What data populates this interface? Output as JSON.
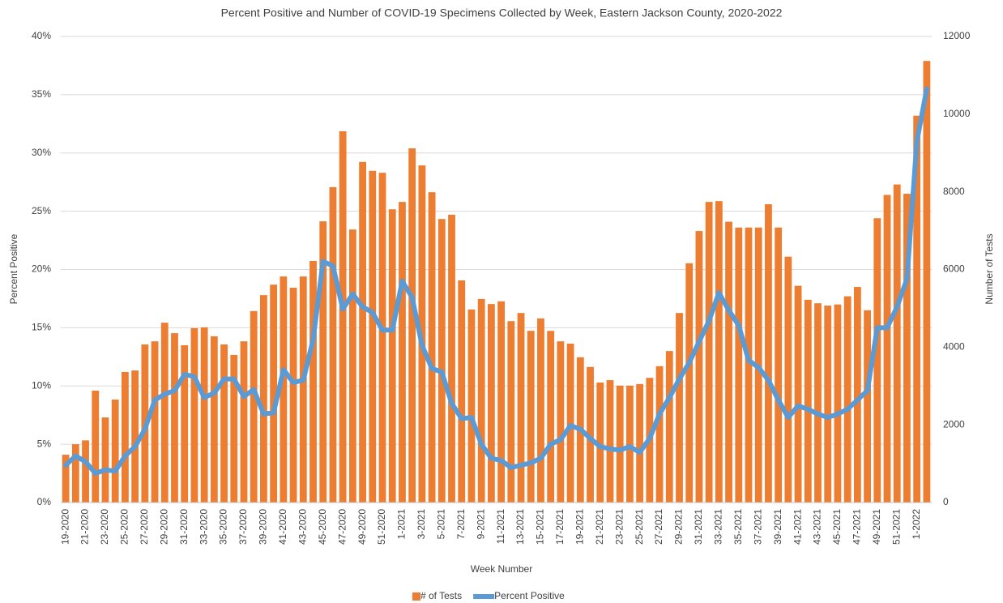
{
  "chart_data": {
    "type": "bar",
    "title": "Percent Positive and Number of COVID-19 Specimens Collected by Week, Eastern Jackson County, 2020-2022",
    "x_label": "Week Number",
    "y_label": "Percent Positive",
    "y2_label": "Number of Tests",
    "categories": [
      "19-2020",
      null,
      "21-2020",
      null,
      "23-2020",
      null,
      "25-2020",
      null,
      "27-2020",
      null,
      "29-2020",
      null,
      "31-2020",
      null,
      "33-2020",
      null,
      "35-2020",
      null,
      "37-2020",
      null,
      "39-2020",
      null,
      "41-2020",
      null,
      "43-2020",
      null,
      "45-2020",
      null,
      "47-2020",
      null,
      "49-2020",
      null,
      "51-2020",
      null,
      "1-2021",
      null,
      "3-2021",
      null,
      "5-2021",
      null,
      "7-2021",
      null,
      "9-2021",
      null,
      "11-2021",
      null,
      "13-2021",
      null,
      "15-2021",
      null,
      "17-2021",
      null,
      "19-2021",
      null,
      "21-2021",
      null,
      "23-2021",
      null,
      "25-2021",
      null,
      "27-2021",
      null,
      "29-2021",
      null,
      "31-2021",
      null,
      "33-2021",
      null,
      "35-2021",
      null,
      "37-2021",
      null,
      "39-2021",
      null,
      "41-2021",
      null,
      "43-2021",
      null,
      "45-2021",
      null,
      "47-2021",
      null,
      "49-2021",
      null,
      "51-2021",
      null,
      "1-2022",
      null
    ],
    "series": [
      {
        "name": "# of Tests",
        "color": "#ed7d31",
        "axis": "y2",
        "values": [
          1230,
          1500,
          1600,
          2880,
          2190,
          2650,
          3360,
          3400,
          4070,
          4150,
          4630,
          4360,
          4050,
          4490,
          4510,
          4280,
          4070,
          3800,
          4150,
          4930,
          5340,
          5610,
          5820,
          5530,
          5820,
          6220,
          7240,
          8120,
          9560,
          7030,
          8770,
          8540,
          8490,
          7550,
          7740,
          9120,
          8680,
          7990,
          7300,
          7410,
          5720,
          4970,
          5240,
          5110,
          5180,
          4670,
          4880,
          4420,
          4740,
          4420,
          4150,
          4090,
          3740,
          3490,
          3090,
          3150,
          3010,
          3010,
          3050,
          3210,
          3510,
          3900,
          4880,
          6160,
          6990,
          7740,
          7760,
          7230,
          7080,
          7080,
          7080,
          7680,
          7080,
          6330,
          5580,
          5220,
          5130,
          5070,
          5100,
          5310,
          5550,
          4950,
          7320,
          7920,
          8190,
          7950,
          9960,
          11370
        ]
      },
      {
        "name": "Percent Positive",
        "color": "#5b9bd5",
        "type": "line",
        "values": [
          3.2,
          4.0,
          3.5,
          2.5,
          2.8,
          2.7,
          4.0,
          4.8,
          6.3,
          8.8,
          9.3,
          9.6,
          11.0,
          10.8,
          9.0,
          9.4,
          10.6,
          10.6,
          9.1,
          9.7,
          7.6,
          7.7,
          11.4,
          10.3,
          10.5,
          14.0,
          20.7,
          20.3,
          16.6,
          17.9,
          16.8,
          16.3,
          14.8,
          14.8,
          19.0,
          17.6,
          13.5,
          11.5,
          11.2,
          8.5,
          7.2,
          7.3,
          5.0,
          3.8,
          3.6,
          3.0,
          3.2,
          3.4,
          3.8,
          5.0,
          5.4,
          6.6,
          6.3,
          5.5,
          4.8,
          4.6,
          4.5,
          4.8,
          4.3,
          5.5,
          7.6,
          9.0,
          10.6,
          12.0,
          13.8,
          15.6,
          18.0,
          16.5,
          15.2,
          12.2,
          11.6,
          10.5,
          8.8,
          7.3,
          8.3,
          8.0,
          7.6,
          7.3,
          7.6,
          8.0,
          8.8,
          9.6,
          15.0,
          15.0,
          16.8,
          19.2,
          31.0,
          35.5
        ]
      }
    ],
    "ylim": [
      0,
      40
    ],
    "yticks": [
      {
        "value": 0,
        "label": "0%"
      },
      {
        "value": 5,
        "label": "5%"
      },
      {
        "value": 10,
        "label": "10%"
      },
      {
        "value": 15,
        "label": "15%"
      },
      {
        "value": 20,
        "label": "20%"
      },
      {
        "value": 25,
        "label": "25%"
      },
      {
        "value": 30,
        "label": "30%"
      },
      {
        "value": 35,
        "label": "35%"
      },
      {
        "value": 40,
        "label": "40%"
      }
    ],
    "y2lim": [
      0,
      12000
    ],
    "y2ticks": [
      0,
      2000,
      4000,
      6000,
      8000,
      10000,
      12000
    ],
    "grid": true,
    "legend": "bottom"
  }
}
